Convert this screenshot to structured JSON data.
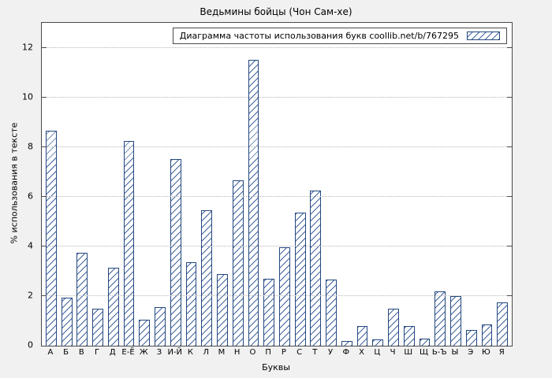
{
  "chart_data": {
    "type": "bar",
    "title": "Ведьмины бойцы (Чон Сам-хе)",
    "legend": "Диаграмма частоты использования букв coollib.net/b/767295",
    "xlabel": "Буквы",
    "ylabel": "% использования в тексте",
    "categories": [
      "А",
      "Б",
      "В",
      "Г",
      "Д",
      "Е-Ё",
      "Ж",
      "З",
      "И-Й",
      "К",
      "Л",
      "М",
      "Н",
      "О",
      "П",
      "Р",
      "С",
      "Т",
      "У",
      "Ф",
      "Х",
      "Ц",
      "Ч",
      "Ш",
      "Щ",
      "Ь-Ъ",
      "Ы",
      "Э",
      "Ю",
      "Я"
    ],
    "values": [
      8.65,
      1.95,
      3.75,
      1.5,
      3.15,
      8.25,
      1.05,
      1.55,
      7.5,
      3.35,
      5.45,
      2.9,
      6.65,
      11.5,
      2.7,
      3.95,
      5.35,
      6.25,
      2.65,
      0.2,
      0.8,
      0.25,
      1.5,
      0.8,
      0.3,
      2.2,
      2.0,
      0.65,
      0.85,
      1.75
    ],
    "yticks": [
      0,
      2,
      4,
      6,
      8,
      10,
      12
    ],
    "ylim": [
      0,
      13
    ],
    "grid": "horizontal-dotted",
    "legend_position": "top-right-inside",
    "bar_border_color": "#24477e",
    "bar_fill": "diagonal-hatch",
    "background_color": "#f1f1f1",
    "plot_background_color": "#ffffff"
  }
}
